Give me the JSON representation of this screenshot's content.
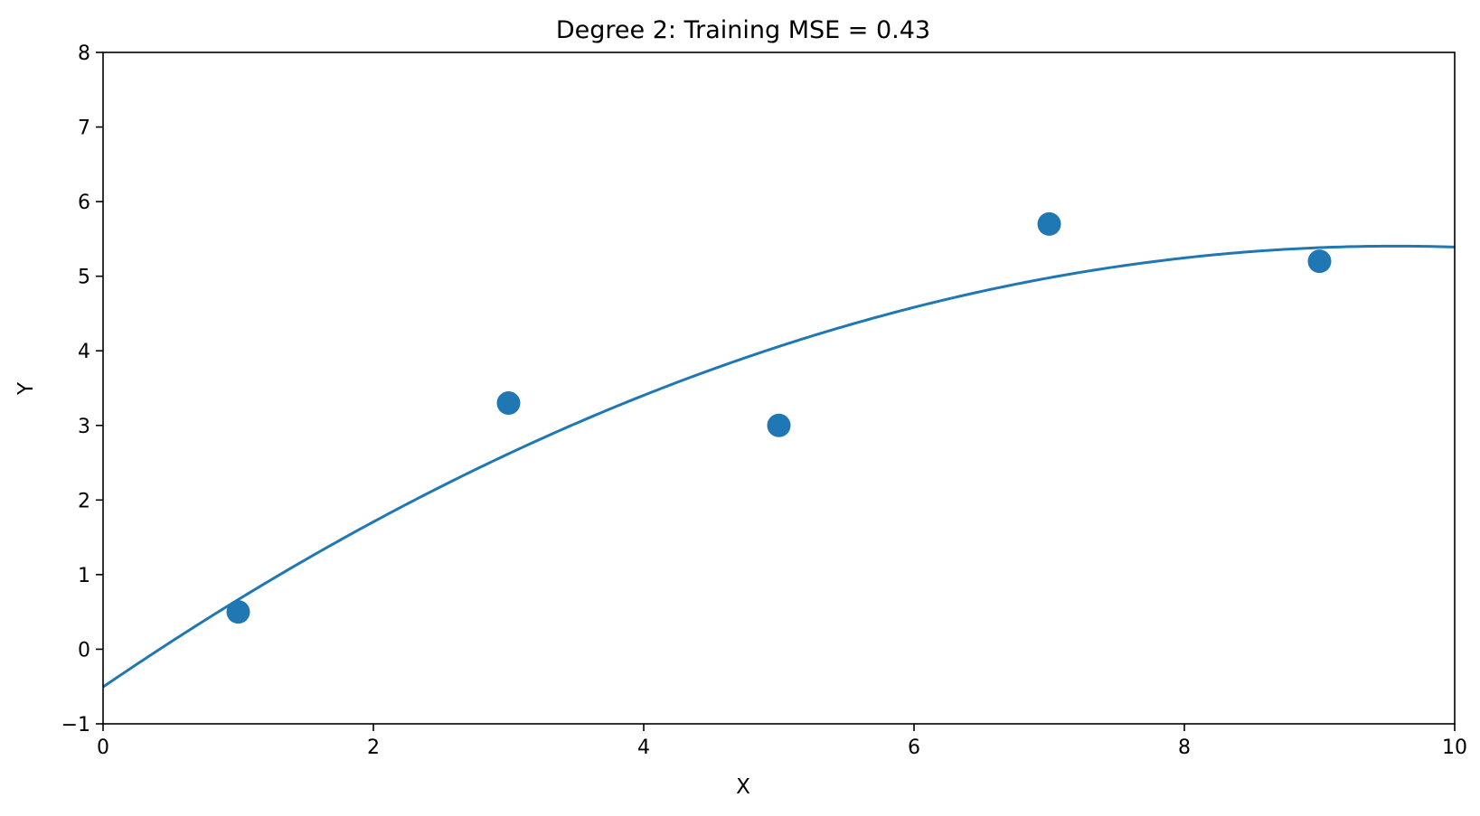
{
  "chart_data": {
    "type": "scatter",
    "title": "Degree 2: Training MSE = 0.43",
    "xlabel": "X",
    "ylabel": "Y",
    "xlim": [
      0,
      10
    ],
    "ylim": [
      -1,
      8
    ],
    "xticks": [
      0,
      2,
      4,
      6,
      8,
      10
    ],
    "xtick_labels": [
      "0",
      "2",
      "4",
      "6",
      "8",
      "10"
    ],
    "yticks": [
      -1,
      0,
      1,
      2,
      3,
      4,
      5,
      6,
      7,
      8
    ],
    "ytick_labels": [
      "−1",
      "0",
      "1",
      "2",
      "3",
      "4",
      "5",
      "6",
      "7",
      "8"
    ],
    "grid": false,
    "series": [
      {
        "type": "scatter",
        "color": "#1f77b4",
        "points": [
          {
            "x": 1,
            "y": 0.5
          },
          {
            "x": 3,
            "y": 3.3
          },
          {
            "x": 5,
            "y": 3.0
          },
          {
            "x": 7,
            "y": 5.7
          },
          {
            "x": 9,
            "y": 5.2
          }
        ]
      },
      {
        "type": "line",
        "color": "#1f77b4",
        "degree": 2,
        "coefficients": {
          "a": -0.0646,
          "b": 1.2357,
          "c": -0.5057
        }
      }
    ]
  }
}
